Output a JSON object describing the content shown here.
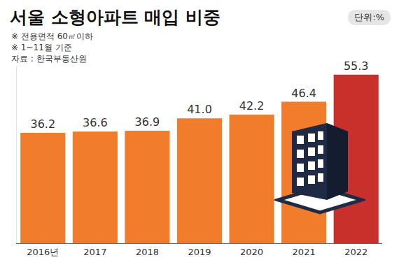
{
  "chart_data": {
    "type": "bar",
    "title": "서울 소형아파트 매입 비중",
    "annotations": [
      "단위:%",
      "※ 전용면적 60㎡이하",
      "※ 1~11월 기준",
      "자료 : 한국부동산원"
    ],
    "categories": [
      "2016년",
      "2017",
      "2018",
      "2019",
      "2020",
      "2021",
      "2022"
    ],
    "values": [
      36.2,
      36.6,
      36.9,
      41.0,
      42.2,
      46.4,
      55.3
    ],
    "value_labels": [
      "36.2",
      "36.6",
      "36.9",
      "41.0",
      "42.2",
      "46.4",
      "55.3"
    ],
    "colors": [
      "#f07c2c",
      "#f07c2c",
      "#f07c2c",
      "#f07c2c",
      "#f07c2c",
      "#f07c2c",
      "#c9302c"
    ],
    "ylim": [
      0,
      58
    ],
    "grid": false,
    "data_labels": true,
    "tick_labels": "x"
  }
}
